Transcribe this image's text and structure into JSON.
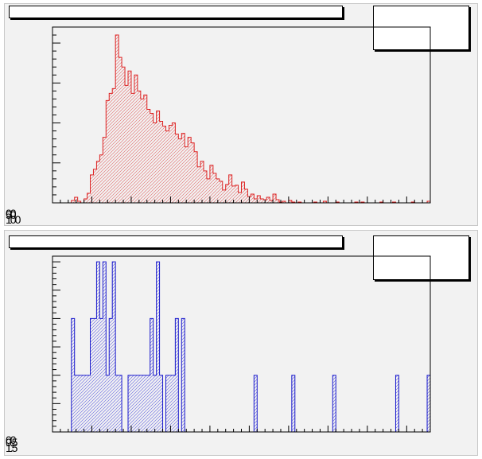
{
  "colors": {
    "pad_background": "#f2f2f2",
    "frame": "#000000",
    "histogram_top": "#dd2222",
    "histogram_bottom": "#1a1acc"
  },
  "pads": [
    {
      "title": "",
      "stats_text": "",
      "overlapped_tick_labels": [
        "00",
        "50",
        "100"
      ]
    },
    {
      "title": "",
      "stats_text": "",
      "overlapped_tick_labels": [
        "00",
        "0.5",
        "1.5"
      ]
    }
  ],
  "chart_data": [
    {
      "type": "bar",
      "subtype": "histogram",
      "style": "hatched, outline step",
      "color": "#dd2222",
      "title": "",
      "xlabel": "",
      "ylabel": "",
      "bins": 120,
      "xlim": [
        0,
        120
      ],
      "ylim": [
        0,
        220
      ],
      "grid": false,
      "legend": "none",
      "values": [
        0,
        0,
        0,
        0,
        0,
        0,
        3,
        7,
        2,
        0,
        5,
        12,
        35,
        42,
        52,
        60,
        82,
        128,
        137,
        143,
        210,
        182,
        170,
        147,
        165,
        137,
        160,
        140,
        130,
        135,
        117,
        112,
        100,
        115,
        102,
        96,
        90,
        97,
        100,
        86,
        80,
        87,
        70,
        82,
        75,
        64,
        45,
        52,
        40,
        30,
        47,
        37,
        30,
        27,
        16,
        23,
        35,
        21,
        22,
        13,
        26,
        17,
        8,
        11,
        5,
        9,
        5,
        4,
        7,
        3,
        11,
        4,
        1,
        2,
        0,
        3,
        1,
        0,
        1,
        0,
        0,
        0,
        0,
        1,
        0,
        0,
        2,
        0,
        0,
        0,
        1,
        0,
        0,
        0,
        0,
        0,
        1,
        0,
        1,
        0,
        0,
        0,
        0,
        0,
        1,
        0,
        0,
        0,
        1,
        0,
        0,
        0,
        0,
        0,
        1,
        0,
        0,
        0,
        0,
        2
      ]
    },
    {
      "type": "bar",
      "subtype": "histogram",
      "style": "hatched, outline step",
      "color": "#1a1acc",
      "title": "",
      "xlabel": "",
      "ylabel": "",
      "bins": 120,
      "xlim": [
        0,
        120
      ],
      "ylim": [
        0,
        6.2
      ],
      "grid": false,
      "legend": "none",
      "values": [
        0,
        0,
        0,
        0,
        0,
        0,
        4,
        2,
        2,
        2,
        2,
        2,
        4,
        4,
        6,
        4,
        6,
        2,
        4,
        6,
        2,
        2,
        0,
        0,
        2,
        2,
        2,
        2,
        2,
        2,
        2,
        4,
        2,
        6,
        2,
        0,
        2,
        2,
        2,
        4,
        0,
        4,
        0,
        0,
        0,
        0,
        0,
        0,
        0,
        0,
        0,
        0,
        0,
        0,
        0,
        0,
        0,
        0,
        0,
        0,
        0,
        0,
        0,
        0,
        2,
        0,
        0,
        0,
        0,
        0,
        0,
        0,
        0,
        0,
        0,
        0,
        2,
        0,
        0,
        0,
        0,
        0,
        0,
        0,
        0,
        0,
        0,
        0,
        0,
        2,
        0,
        0,
        0,
        0,
        0,
        0,
        0,
        0,
        0,
        0,
        0,
        0,
        0,
        0,
        0,
        0,
        0,
        0,
        0,
        2,
        0,
        0,
        0,
        0,
        0,
        0,
        0,
        0,
        0,
        2
      ]
    }
  ]
}
